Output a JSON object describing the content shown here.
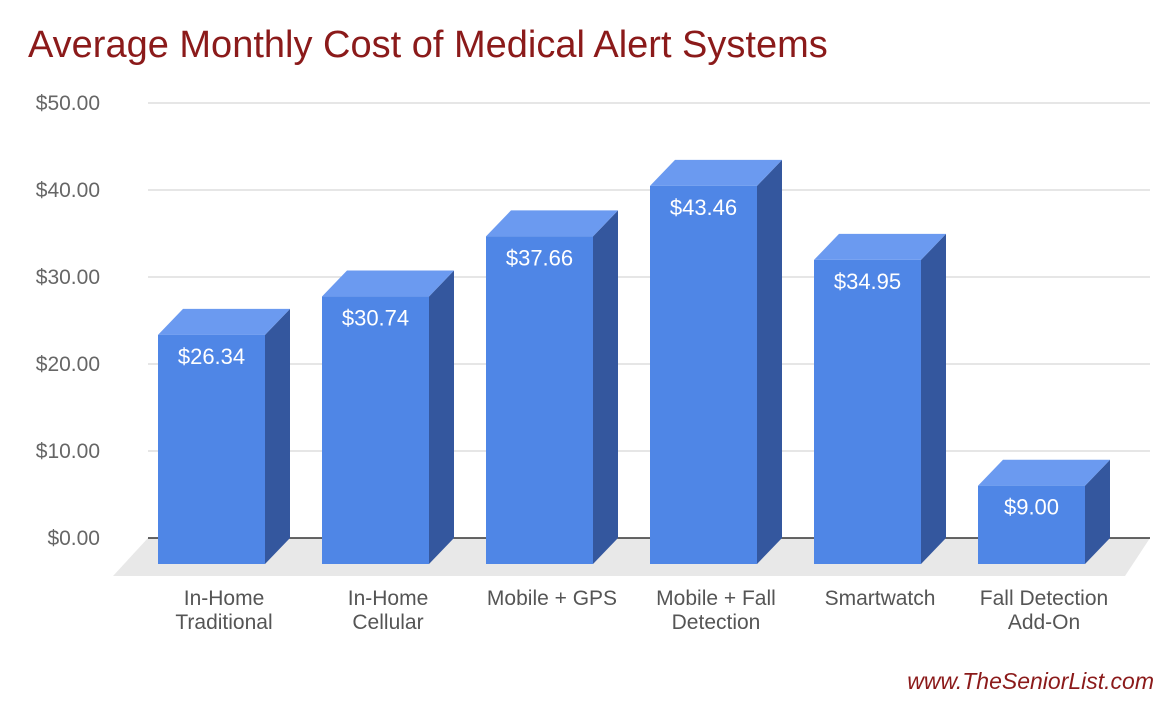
{
  "chart_data": {
    "type": "bar",
    "title": "Average Monthly Cost of Medical Alert Systems",
    "categories": [
      [
        "In-Home",
        "Traditional"
      ],
      [
        "In-Home",
        "Cellular"
      ],
      [
        "Mobile + GPS"
      ],
      [
        "Mobile + Fall",
        "Detection"
      ],
      [
        "Smartwatch"
      ],
      [
        "Fall Detection",
        "Add-On"
      ]
    ],
    "values": [
      26.34,
      30.74,
      37.66,
      43.46,
      34.95,
      9.0
    ],
    "data_labels": [
      "$26.34",
      "$30.74",
      "$37.66",
      "$43.46",
      "$34.95",
      "$9.00"
    ],
    "y_ticks": [
      0,
      10,
      20,
      30,
      40,
      50
    ],
    "y_tick_labels": [
      "$0.00",
      "$10.00",
      "$20.00",
      "$30.00",
      "$40.00",
      "$50.00"
    ],
    "ylim": [
      0,
      50
    ],
    "xlabel": "",
    "ylabel": "",
    "grid": true,
    "style": "3d-bar"
  },
  "source": "www.TheSeniorList.com",
  "colors": {
    "title": "#8b1a1a",
    "bar_front": "#4f86e6",
    "bar_top": "#6b9af0",
    "bar_side": "#34579e",
    "floor": "#e8e8e8",
    "grid": "#cccccc",
    "tick_text": "#666666",
    "category_text": "#555555",
    "data_label": "#ffffff"
  }
}
